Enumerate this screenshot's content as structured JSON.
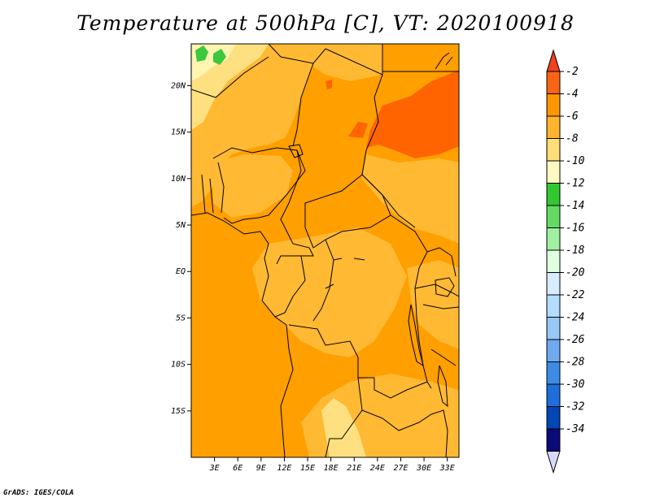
{
  "title": "Temperature at 500hPa [C], VT: 2020100918",
  "footer": "GrADS: IGES/COLA",
  "map": {
    "lon_range": [
      0,
      34.5
    ],
    "lat_range": [
      -20,
      24.5
    ],
    "y_ticks": [
      "20N",
      "15N",
      "10N",
      "5N",
      "EQ",
      "5S",
      "10S",
      "15S"
    ],
    "x_ticks": [
      "3E",
      "6E",
      "9E",
      "12E",
      "15E",
      "18E",
      "21E",
      "24E",
      "27E",
      "30E",
      "33E"
    ],
    "fill_colors": {
      "minus_4_to_minus_2": "#ff6400",
      "minus_6_to_minus_4": "#ff9f00",
      "minus_8_to_minus_6": "#ffb933",
      "minus_10_to_minus_8": "#ffe080",
      "minus_12_to_minus_10": "#fff4b0",
      "minus_14_to_minus_12": "#3cc83c"
    }
  },
  "colorbar": {
    "labels": [
      "-2",
      "-4",
      "-6",
      "-8",
      "-10",
      "-12",
      "-14",
      "-16",
      "-18",
      "-20",
      "-22",
      "-24",
      "-26",
      "-28",
      "-30",
      "-32",
      "-34"
    ],
    "top_color": "#f0401e",
    "colors": [
      "#fa6414",
      "#ff9600",
      "#ffb42e",
      "#ffdd78",
      "#fff8c0",
      "#32c832",
      "#64dc64",
      "#a0f0a0",
      "#e0ffe0",
      "#d8ecff",
      "#b4dcff",
      "#96c8f8",
      "#6eaaf0",
      "#3c8ce6",
      "#1e6edc",
      "#0046b4"
    ],
    "bottom_color": "#d8d8ff",
    "bottom_box_color": "#0a0a78"
  }
}
